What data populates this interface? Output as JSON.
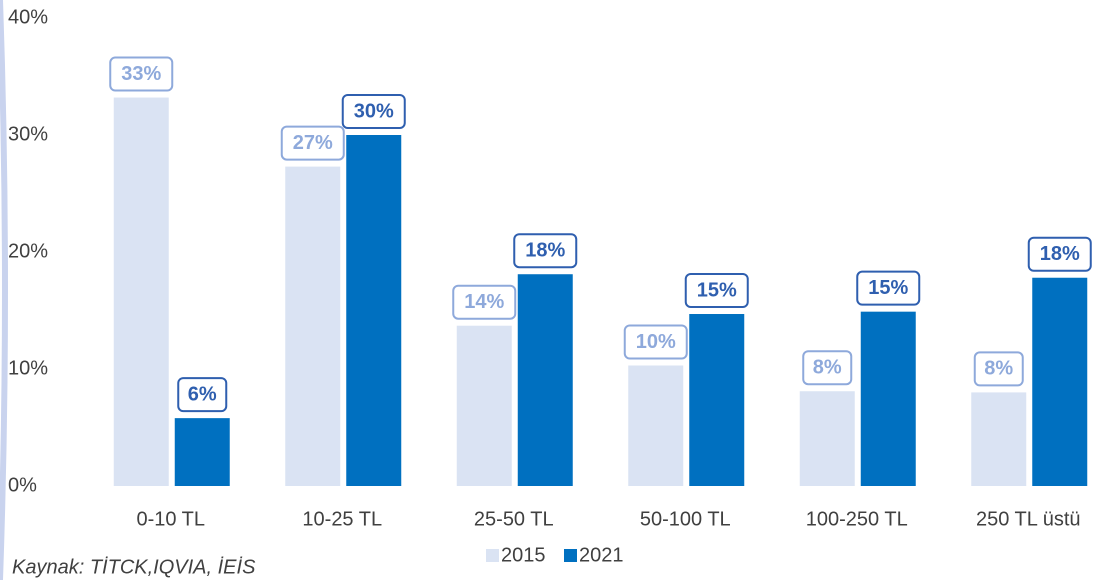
{
  "chart_data": {
    "type": "bar",
    "categories": [
      "0-10 TL",
      "10-25 TL",
      "25-50 TL",
      "50-100 TL",
      "100-250 TL",
      "250 TL üstü"
    ],
    "series": [
      {
        "name": "2015",
        "color": "#dae3f3",
        "label_color": "#8ea9db",
        "values": [
          33.2,
          27.3,
          13.7,
          10.3,
          8.1,
          8.0
        ],
        "value_labels": [
          "33%",
          "27%",
          "14%",
          "10%",
          "8%",
          "8%"
        ]
      },
      {
        "name": "2021",
        "color": "#0070c0",
        "label_color": "#2f5faf",
        "values": [
          5.8,
          30.0,
          18.1,
          14.7,
          14.9,
          17.8
        ],
        "value_labels": [
          "6%",
          "30%",
          "18%",
          "15%",
          "15%",
          "18%"
        ]
      }
    ],
    "ylim": [
      0,
      40
    ],
    "yticks": [
      {
        "value": 0,
        "label": "0%"
      },
      {
        "value": 10,
        "label": "10%"
      },
      {
        "value": 20,
        "label": "20%"
      },
      {
        "value": 30,
        "label": "30%"
      },
      {
        "value": 40,
        "label": "40%"
      }
    ],
    "grid": false,
    "legend": "bottom",
    "source": "Kaynak: TİTCK,IQVIA, İEİS"
  }
}
